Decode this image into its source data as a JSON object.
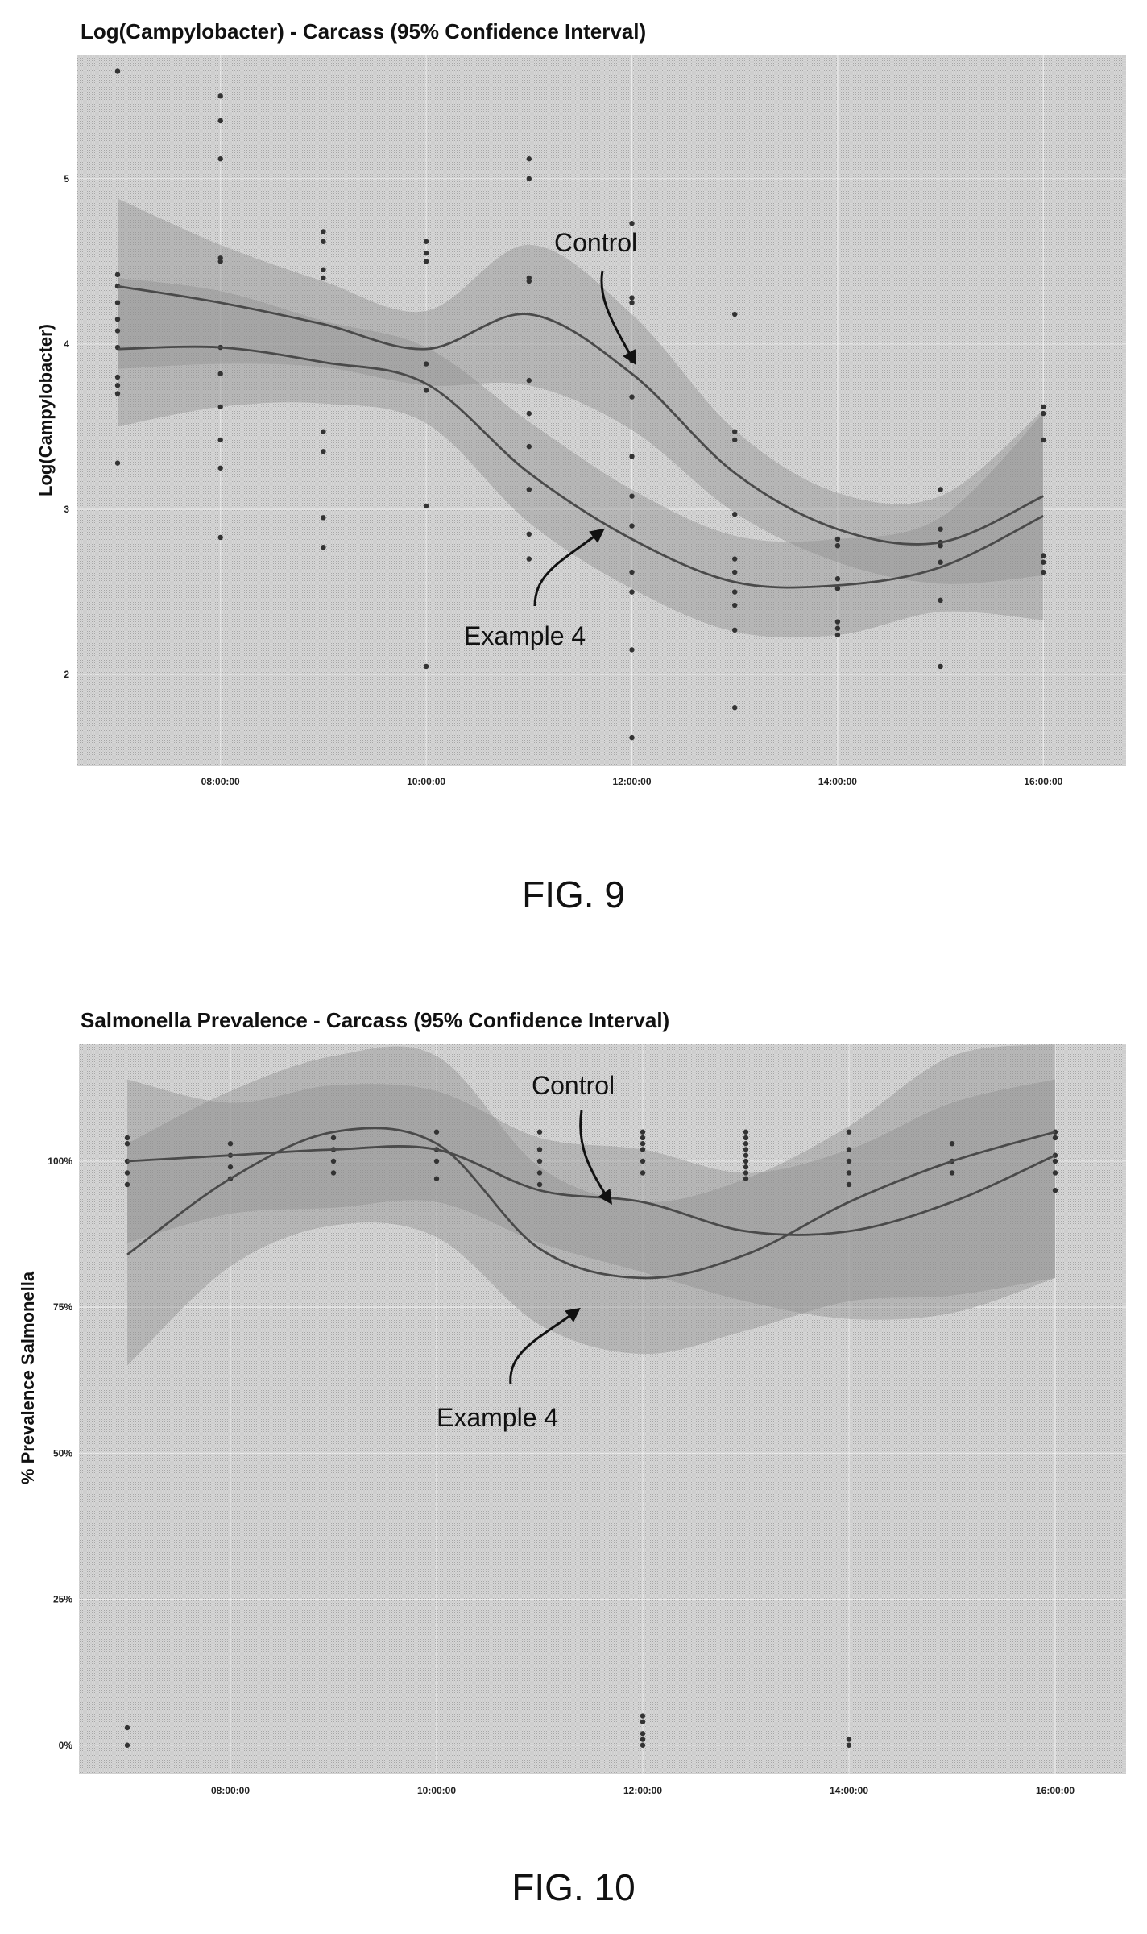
{
  "chart_data": [
    {
      "type": "line",
      "title": "Log(Campylobacter) - Carcass (95% Confidence Interval)",
      "xlabel": "",
      "ylabel": "Log(Campylobacter)",
      "figure_label": "FIG. 9",
      "x_ticks": [
        "08:00:00",
        "10:00:00",
        "12:00:00",
        "14:00:00",
        "16:00:00"
      ],
      "y_ticks": [
        2,
        3,
        4,
        5
      ],
      "y_tick_labels": [
        "2",
        "3",
        "4",
        "5"
      ],
      "xlim": [
        6.6,
        16.3
      ],
      "ylim": [
        1.45,
        5.75
      ],
      "grid": true,
      "x": [
        7,
        8,
        9,
        10,
        11,
        12,
        13,
        14,
        15,
        16
      ],
      "series": [
        {
          "name": "Control",
          "values": [
            4.35,
            4.25,
            4.12,
            3.97,
            4.18,
            3.82,
            3.22,
            2.88,
            2.8,
            3.08
          ],
          "ci_lower": [
            3.85,
            3.88,
            3.86,
            3.75,
            3.75,
            3.48,
            2.98,
            2.68,
            2.55,
            2.6
          ],
          "ci_upper": [
            4.88,
            4.6,
            4.38,
            4.2,
            4.6,
            4.18,
            3.48,
            3.1,
            3.08,
            3.6
          ]
        },
        {
          "name": "Example 4",
          "values": [
            3.97,
            3.98,
            3.89,
            3.76,
            3.22,
            2.82,
            2.56,
            2.54,
            2.65,
            2.96
          ],
          "ci_lower": [
            3.5,
            3.62,
            3.64,
            3.52,
            2.92,
            2.52,
            2.26,
            2.24,
            2.38,
            2.33
          ],
          "ci_upper": [
            4.4,
            4.32,
            4.14,
            3.98,
            3.53,
            3.12,
            2.84,
            2.82,
            2.95,
            3.58
          ]
        }
      ],
      "points": [
        [
          7,
          5.65
        ],
        [
          7,
          4.42
        ],
        [
          7,
          4.35
        ],
        [
          7,
          4.25
        ],
        [
          7,
          4.15
        ],
        [
          7,
          4.08
        ],
        [
          7,
          3.98
        ],
        [
          7,
          3.8
        ],
        [
          7,
          3.75
        ],
        [
          7,
          3.7
        ],
        [
          7,
          3.28
        ],
        [
          8,
          5.5
        ],
        [
          8,
          5.35
        ],
        [
          8,
          5.12
        ],
        [
          8,
          4.52
        ],
        [
          8,
          4.5
        ],
        [
          8,
          3.98
        ],
        [
          8,
          3.82
        ],
        [
          8,
          3.62
        ],
        [
          8,
          3.42
        ],
        [
          8,
          3.25
        ],
        [
          8,
          2.83
        ],
        [
          9,
          4.68
        ],
        [
          9,
          4.62
        ],
        [
          9,
          4.45
        ],
        [
          9,
          4.4
        ],
        [
          9,
          3.47
        ],
        [
          9,
          3.35
        ],
        [
          9,
          2.95
        ],
        [
          9,
          2.77
        ],
        [
          10,
          4.62
        ],
        [
          10,
          4.55
        ],
        [
          10,
          4.5
        ],
        [
          10,
          3.88
        ],
        [
          10,
          3.72
        ],
        [
          10,
          3.02
        ],
        [
          10,
          2.05
        ],
        [
          11,
          5.12
        ],
        [
          11,
          5.0
        ],
        [
          11,
          4.4
        ],
        [
          11,
          4.38
        ],
        [
          11,
          3.78
        ],
        [
          11,
          3.58
        ],
        [
          11,
          3.38
        ],
        [
          11,
          3.12
        ],
        [
          11,
          2.85
        ],
        [
          11,
          2.7
        ],
        [
          12,
          4.73
        ],
        [
          12,
          4.28
        ],
        [
          12,
          4.25
        ],
        [
          12,
          3.9
        ],
        [
          12,
          3.68
        ],
        [
          12,
          3.32
        ],
        [
          12,
          3.08
        ],
        [
          12,
          2.9
        ],
        [
          12,
          2.62
        ],
        [
          12,
          2.5
        ],
        [
          12,
          2.15
        ],
        [
          12,
          1.62
        ],
        [
          13,
          4.18
        ],
        [
          13,
          3.47
        ],
        [
          13,
          3.42
        ],
        [
          13,
          2.97
        ],
        [
          13,
          2.7
        ],
        [
          13,
          2.62
        ],
        [
          13,
          2.5
        ],
        [
          13,
          2.42
        ],
        [
          13,
          2.27
        ],
        [
          13,
          1.8
        ],
        [
          14,
          2.82
        ],
        [
          14,
          2.78
        ],
        [
          14,
          2.58
        ],
        [
          14,
          2.52
        ],
        [
          14,
          2.32
        ],
        [
          14,
          2.28
        ],
        [
          14,
          2.24
        ],
        [
          15,
          3.12
        ],
        [
          15,
          2.88
        ],
        [
          15,
          2.8
        ],
        [
          15,
          2.78
        ],
        [
          15,
          2.68
        ],
        [
          15,
          2.45
        ],
        [
          15,
          2.05
        ],
        [
          16,
          3.62
        ],
        [
          16,
          3.58
        ],
        [
          16,
          3.42
        ],
        [
          16,
          2.72
        ],
        [
          16,
          2.68
        ],
        [
          16,
          2.62
        ]
      ],
      "annotations": [
        {
          "text": "Control",
          "target_series": "Control",
          "at_x": 11.9,
          "at_y": 3.93
        },
        {
          "text": "Example 4",
          "target_series": "Example 4",
          "at_x": 11.5,
          "at_y": 2.86
        }
      ]
    },
    {
      "type": "line",
      "title": "Salmonella Prevalence - Carcass (95% Confidence Interval)",
      "xlabel": "",
      "ylabel": "% Prevalence Salmonella",
      "figure_label": "FIG. 10",
      "x_ticks": [
        "08:00:00",
        "10:00:00",
        "12:00:00",
        "14:00:00",
        "16:00:00"
      ],
      "y_ticks": [
        0,
        0.25,
        0.5,
        0.75,
        1.0
      ],
      "y_tick_labels": [
        "0%",
        "25%",
        "50%",
        "75%",
        "100%"
      ],
      "xlim": [
        6.6,
        16.4
      ],
      "ylim": [
        -0.05,
        1.2
      ],
      "grid": true,
      "x": [
        7,
        8,
        9,
        10,
        11,
        12,
        13,
        14,
        15,
        16
      ],
      "series": [
        {
          "name": "Control",
          "values": [
            1.0,
            1.01,
            1.02,
            1.02,
            0.95,
            0.93,
            0.88,
            0.88,
            0.93,
            1.01
          ],
          "ci_lower": [
            0.86,
            0.91,
            0.92,
            0.93,
            0.86,
            0.81,
            0.76,
            0.73,
            0.74,
            0.8
          ],
          "ci_upper": [
            1.14,
            1.1,
            1.13,
            1.12,
            1.04,
            1.02,
            0.98,
            1.02,
            1.1,
            1.14
          ]
        },
        {
          "name": "Example 4",
          "values": [
            0.84,
            0.97,
            1.05,
            1.03,
            0.85,
            0.8,
            0.84,
            0.93,
            1.0,
            1.05
          ],
          "ci_lower": [
            0.65,
            0.82,
            0.89,
            0.87,
            0.72,
            0.67,
            0.71,
            0.76,
            0.77,
            0.8
          ],
          "ci_upper": [
            1.03,
            1.12,
            1.18,
            1.18,
            0.99,
            0.93,
            0.97,
            1.06,
            1.18,
            1.2
          ]
        }
      ],
      "points": [
        [
          7,
          1.04
        ],
        [
          7,
          1.03
        ],
        [
          7,
          1.0
        ],
        [
          7,
          0.98
        ],
        [
          7,
          0.96
        ],
        [
          7,
          0.03
        ],
        [
          7,
          0.0
        ],
        [
          8,
          1.03
        ],
        [
          8,
          1.01
        ],
        [
          8,
          0.99
        ],
        [
          8,
          0.97
        ],
        [
          9,
          1.04
        ],
        [
          9,
          1.02
        ],
        [
          9,
          1.0
        ],
        [
          9,
          0.98
        ],
        [
          10,
          1.05
        ],
        [
          10,
          1.02
        ],
        [
          10,
          1.0
        ],
        [
          10,
          0.97
        ],
        [
          11,
          1.05
        ],
        [
          11,
          1.02
        ],
        [
          11,
          1.0
        ],
        [
          11,
          0.98
        ],
        [
          11,
          0.96
        ],
        [
          12,
          1.05
        ],
        [
          12,
          1.04
        ],
        [
          12,
          1.03
        ],
        [
          12,
          1.02
        ],
        [
          12,
          1.0
        ],
        [
          12,
          0.98
        ],
        [
          12,
          0.05
        ],
        [
          12,
          0.04
        ],
        [
          12,
          0.02
        ],
        [
          12,
          0.01
        ],
        [
          12,
          0.0
        ],
        [
          13,
          1.05
        ],
        [
          13,
          1.04
        ],
        [
          13,
          1.03
        ],
        [
          13,
          1.02
        ],
        [
          13,
          1.01
        ],
        [
          13,
          1.0
        ],
        [
          13,
          0.99
        ],
        [
          13,
          0.98
        ],
        [
          13,
          0.97
        ],
        [
          14,
          1.05
        ],
        [
          14,
          1.02
        ],
        [
          14,
          1.0
        ],
        [
          14,
          0.98
        ],
        [
          14,
          0.96
        ],
        [
          14,
          0.01
        ],
        [
          14,
          0.0
        ],
        [
          15,
          1.03
        ],
        [
          15,
          1.0
        ],
        [
          15,
          0.98
        ],
        [
          16,
          1.05
        ],
        [
          16,
          1.04
        ],
        [
          16,
          1.01
        ],
        [
          16,
          1.0
        ],
        [
          16,
          0.98
        ],
        [
          16,
          0.95
        ]
      ],
      "annotations": [
        {
          "text": "Control",
          "target_series": "Control",
          "at_x": 12.0,
          "at_y": 0.935
        },
        {
          "text": "Example 4",
          "target_series": "Example 4",
          "at_x": 11.4,
          "at_y": 0.78
        }
      ]
    }
  ]
}
